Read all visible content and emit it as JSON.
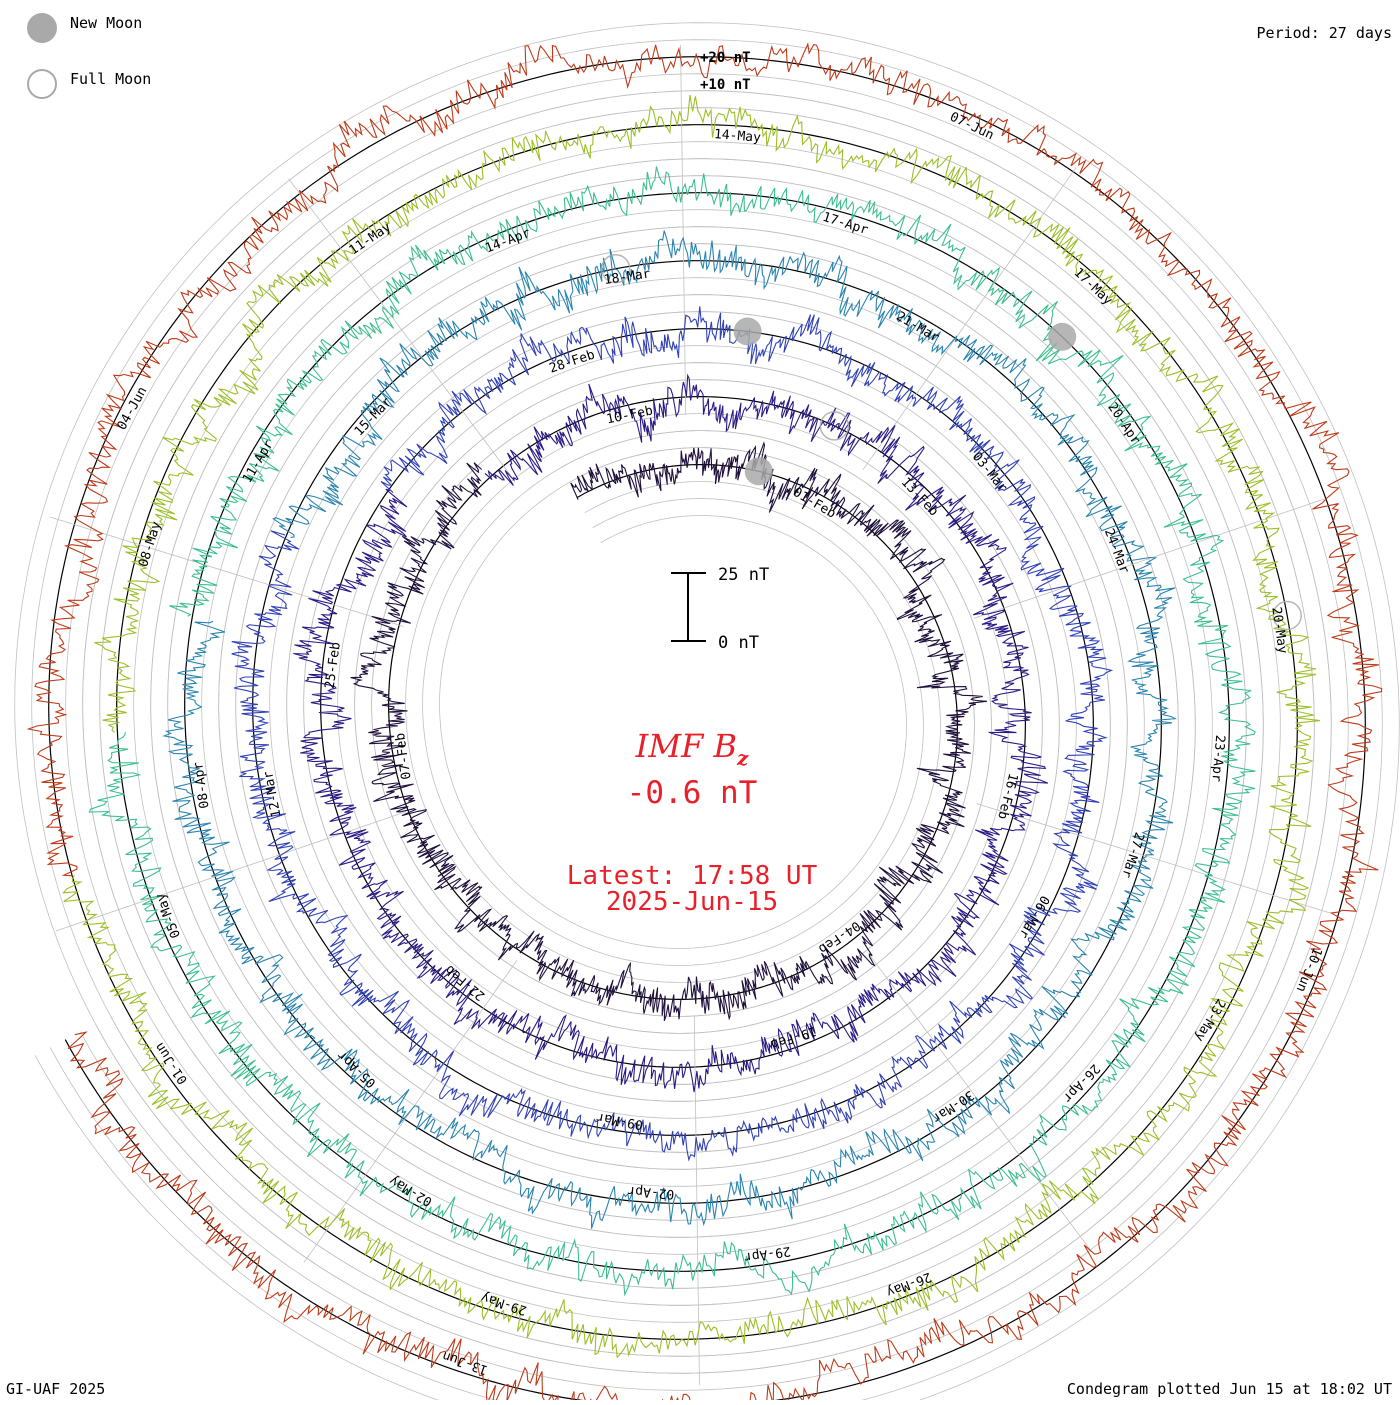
{
  "legend": {
    "new_moon": "New Moon",
    "full_moon": "Full Moon"
  },
  "period": "Period: 27 days",
  "footer": {
    "credit": "GI-UAF 2025",
    "plotted": "Condegram plotted Jun 15 at 18:02 UT"
  },
  "scale": {
    "top": "25 nT",
    "bottom": "0 nT"
  },
  "center": {
    "quantity": "IMF B",
    "subscript": "z",
    "value": "-0.6 nT",
    "latest": "Latest: 17:58 UT",
    "date": "2025-Jun-15"
  },
  "colors": {
    "accent": "#e8202a",
    "grid": "#c0c0c0",
    "baseline": "#000000",
    "moon_fill": "#a9a9a9"
  },
  "chart_data": {
    "type": "line",
    "title": "IMF Bz",
    "units": "nT",
    "period_days": 27,
    "axis_labels": [
      "+20 nT",
      "+10 nT"
    ],
    "grid_levels_nT": [
      -30,
      -20,
      -10,
      0,
      10,
      20
    ],
    "rings": [
      {
        "ring": 1,
        "color": "#1e0f3c",
        "dates": [
          "01-Feb",
          "04-Feb",
          "07-Feb"
        ]
      },
      {
        "ring": 2,
        "color": "#2a1a86",
        "dates": [
          "10-Feb",
          "13-Feb",
          "16-Feb",
          "19-Feb",
          "22-Feb",
          "25-Feb"
        ]
      },
      {
        "ring": 3,
        "color": "#3041b8",
        "dates": [
          "28-Feb",
          "03-Mar",
          "06-Mar",
          "09-Mar",
          "12-Mar"
        ]
      },
      {
        "ring": 4,
        "color": "#2a84b0",
        "dates": [
          "15-Mar",
          "18-Mar",
          "21-Mar",
          "24-Mar",
          "27-Mar",
          "30-Mar",
          "02-Apr",
          "05-Apr",
          "08-Apr"
        ]
      },
      {
        "ring": 5,
        "color": "#3cbf8f",
        "dates": [
          "11-Apr",
          "14-Apr",
          "17-Apr",
          "20-Apr",
          "23-Apr",
          "26-Apr",
          "29-Apr",
          "02-May",
          "05-May"
        ]
      },
      {
        "ring": 6,
        "color": "#9bbf28",
        "dates": [
          "08-May",
          "11-May",
          "14-May",
          "17-May",
          "20-May",
          "23-May",
          "26-May",
          "29-May",
          "01-Jun"
        ]
      },
      {
        "ring": 7,
        "color": "#bf3a18",
        "dates": [
          "04-Jun",
          "07-Jun",
          "10-Jun",
          "13-Jun"
        ]
      }
    ],
    "latest_value": -0.6
  }
}
